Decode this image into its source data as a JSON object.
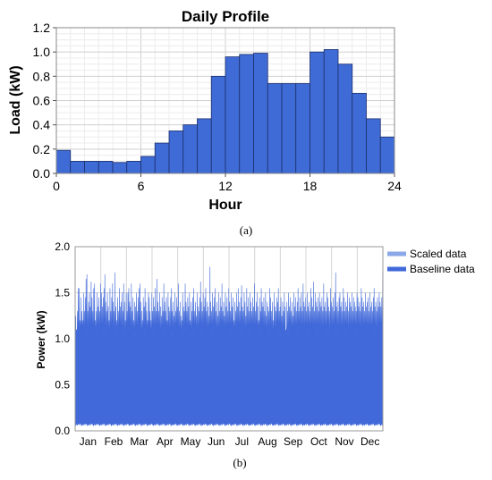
{
  "chart_data": [
    {
      "type": "bar",
      "title": "Daily Profile",
      "xlabel": "Hour",
      "ylabel": "Load (kW)",
      "xlim": [
        0,
        24
      ],
      "ylim": [
        0,
        1.2
      ],
      "xticks": [
        "0",
        "6",
        "12",
        "18",
        "24"
      ],
      "yticks": [
        "0.0",
        "0.2",
        "0.4",
        "0.6",
        "0.8",
        "1.0",
        "1.2"
      ],
      "grid": true,
      "bar_color": "#3f6bd6",
      "x": [
        0,
        1,
        2,
        3,
        4,
        5,
        6,
        7,
        8,
        9,
        10,
        11,
        12,
        13,
        14,
        15,
        16,
        17,
        18,
        19,
        20,
        21,
        22,
        23
      ],
      "values": [
        0.19,
        0.1,
        0.1,
        0.1,
        0.09,
        0.1,
        0.14,
        0.25,
        0.35,
        0.4,
        0.45,
        0.8,
        0.96,
        0.98,
        0.99,
        0.74,
        0.74,
        0.74,
        1.0,
        1.02,
        0.9,
        0.66,
        0.45,
        0.3
      ],
      "caption": "(a)"
    },
    {
      "type": "area",
      "xlabel": "",
      "ylabel": "Power (kW)",
      "ylim": [
        0,
        2.0
      ],
      "yticks": [
        "0.0",
        "0.5",
        "1.0",
        "1.5",
        "2.0"
      ],
      "xticks": [
        "Jan",
        "Feb",
        "Mar",
        "Apr",
        "May",
        "Jun",
        "Jul",
        "Aug",
        "Sep",
        "Oct",
        "Nov",
        "Dec"
      ],
      "grid": true,
      "legend_position": "top-right",
      "series": [
        {
          "name": "Scaled data",
          "color": "#8aa8e8"
        },
        {
          "name": "Baseline data",
          "color": "#4169d9"
        }
      ],
      "daily_peaks": [
        1.25,
        1.1,
        1.3,
        1.55,
        1.55,
        1.2,
        1.45,
        1.3,
        1.2,
        1.5,
        1.3,
        1.45,
        1.65,
        1.7,
        1.3,
        1.4,
        1.5,
        1.35,
        1.62,
        1.45,
        1.3,
        1.55,
        1.6,
        1.2,
        1.3,
        1.5,
        1.35,
        1.45,
        1.3,
        1.6,
        1.5,
        1.35,
        1.45,
        1.55,
        1.7,
        1.4,
        1.3,
        1.5,
        1.35,
        1.2,
        1.55,
        1.3,
        1.45,
        1.6,
        1.4,
        1.3,
        1.72,
        1.35,
        1.2,
        1.45,
        1.3,
        1.55,
        1.35,
        1.4,
        1.5,
        1.3,
        1.6,
        1.4,
        1.2,
        1.5,
        1.3,
        1.5,
        1.55,
        1.4,
        1.35,
        1.6,
        1.3,
        1.45,
        1.2,
        1.4,
        1.35,
        1.5,
        1.3,
        1.45,
        1.55,
        1.6,
        1.4,
        1.3,
        1.2,
        1.45,
        1.35,
        1.55,
        1.4,
        1.3,
        1.2,
        1.5,
        1.45,
        1.3,
        1.2,
        1.5,
        1.3,
        1.45,
        1.35,
        1.55,
        1.3,
        1.65,
        1.4,
        1.3,
        1.5,
        1.35,
        1.25,
        1.45,
        1.3,
        1.6,
        1.4,
        1.3,
        1.45,
        1.2,
        1.5,
        1.35,
        1.3,
        1.45,
        1.55,
        1.3,
        1.4,
        1.25,
        1.5,
        1.3,
        1.45,
        1.35,
        1.6,
        1.3,
        1.4,
        1.25,
        1.2,
        1.5,
        1.35,
        1.3,
        1.6,
        1.4,
        1.3,
        1.45,
        1.35,
        1.5,
        1.2,
        1.4,
        1.3,
        1.45,
        1.55,
        1.3,
        1.4,
        1.25,
        1.5,
        1.35,
        1.3,
        1.45,
        1.62,
        1.4,
        1.3,
        1.5,
        1.35,
        1.45,
        1.55,
        1.3,
        1.4,
        1.35,
        1.25,
        1.78,
        1.4,
        1.3,
        1.5,
        1.35,
        1.45,
        1.55,
        1.3,
        1.4,
        1.25,
        1.5,
        1.3,
        1.45,
        1.35,
        1.6,
        1.3,
        1.4,
        1.25,
        1.5,
        1.35,
        1.45,
        1.3,
        1.55,
        1.4,
        1.3,
        1.5,
        1.35,
        1.45,
        1.2,
        1.4,
        1.3,
        1.5,
        1.35,
        1.55,
        1.4,
        1.3,
        1.45,
        1.58,
        1.35,
        1.3,
        1.5,
        1.4,
        1.25,
        1.55,
        1.35,
        1.45,
        1.3,
        1.5,
        1.4,
        1.3,
        1.45,
        1.35,
        1.6,
        1.3,
        1.4,
        1.5,
        1.35,
        1.2,
        1.45,
        1.3,
        1.55,
        1.4,
        1.35,
        1.45,
        1.3,
        1.5,
        1.25,
        1.4,
        1.35,
        1.3,
        1.55,
        1.45,
        1.3,
        1.4,
        1.2,
        1.5,
        1.35,
        1.3,
        1.45,
        1.4,
        1.55,
        1.3,
        1.35,
        1.45,
        1.25,
        1.4,
        1.3,
        1.5,
        1.35,
        0.95,
        1.4,
        1.3,
        1.5,
        1.35,
        1.45,
        1.3,
        1.4,
        1.25,
        1.5,
        1.35,
        1.45,
        1.3,
        1.4,
        1.55,
        1.3,
        1.45,
        1.35,
        1.5,
        1.3,
        1.6,
        1.4,
        1.35,
        1.45,
        1.3,
        1.5,
        1.35,
        1.4,
        1.3,
        1.55,
        1.45,
        1.35,
        1.62,
        1.3,
        1.5,
        1.4,
        1.35,
        1.45,
        1.3,
        1.5,
        1.4,
        1.35,
        1.45,
        1.3,
        1.6,
        1.35,
        1.4,
        1.3,
        1.5,
        1.45,
        1.35,
        1.3,
        1.55,
        1.4,
        1.35,
        1.45,
        1.3,
        1.5,
        1.72,
        1.35,
        1.4,
        1.3,
        1.45,
        1.5,
        1.35,
        1.4,
        1.3,
        1.55,
        1.45,
        1.3,
        1.4,
        1.35,
        1.5,
        1.3,
        1.45,
        1.4,
        1.35,
        1.5,
        1.3,
        1.45,
        1.4,
        1.35,
        1.3,
        1.5,
        1.45,
        1.35,
        1.4,
        1.3,
        1.55,
        1.45,
        1.35,
        1.4,
        1.3,
        1.5,
        1.35,
        1.4,
        1.45,
        1.3,
        1.5,
        1.35,
        1.4,
        1.3,
        1.45,
        1.55,
        1.35,
        1.4,
        1.3,
        1.45,
        1.35,
        1.5,
        1.4,
        1.35,
        1.45,
        1.75
      ],
      "daily_troughs": [
        0.05
      ],
      "caption": "(b)"
    }
  ]
}
